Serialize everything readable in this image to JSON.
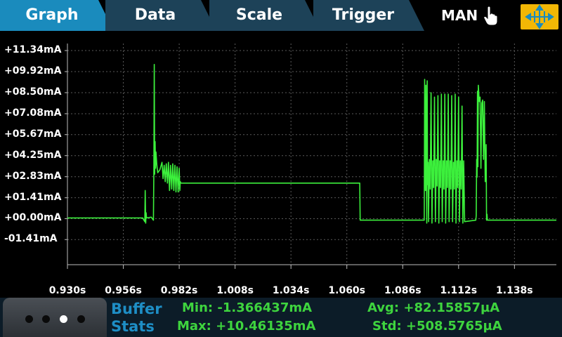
{
  "tabs": [
    {
      "id": "graph",
      "label": "Graph",
      "active": true
    },
    {
      "id": "data",
      "label": "Data",
      "active": false
    },
    {
      "id": "scale",
      "label": "Scale",
      "active": false
    },
    {
      "id": "trigger",
      "label": "Trigger",
      "active": false
    }
  ],
  "mode": {
    "label": "MAN",
    "icon": "hand-pointer-icon"
  },
  "cursor_button": {
    "icon": "cursor-arrows-icon"
  },
  "colors": {
    "tab_active": "#1a8bbd",
    "tab_inactive": "#1d4258",
    "trace": "#3cf03c",
    "grid": "#5a5a5a",
    "stats_title": "#1e8ec5",
    "stats_text": "#3ed43e"
  },
  "chart_data": {
    "type": "line",
    "title": "",
    "xlabel": "",
    "ylabel": "",
    "x_unit": "s",
    "y_unit": "mA",
    "xlim": [
      0.93,
      1.1575
    ],
    "ylim": [
      -2.82,
      11.34
    ],
    "yticks": [
      "+11.34mA",
      "+09.92mA",
      "+08.50mA",
      "+07.08mA",
      "+05.67mA",
      "+04.25mA",
      "+02.83mA",
      "+01.41mA",
      "+00.00mA",
      "-01.41mA"
    ],
    "ytick_values": [
      11.34,
      9.92,
      8.5,
      7.08,
      5.67,
      4.25,
      2.83,
      1.41,
      0.0,
      -1.41
    ],
    "xticks": [
      "0.930s",
      "0.956s",
      "0.982s",
      "1.008s",
      "1.034s",
      "1.060s",
      "1.086s",
      "1.112s",
      "1.138s"
    ],
    "xtick_values": [
      0.93,
      0.956,
      0.982,
      1.008,
      1.034,
      1.06,
      1.086,
      1.112,
      1.138
    ],
    "grid": true,
    "legend": "none",
    "series": [
      {
        "x": [
          0.93,
          0.965,
          0.966,
          0.9662,
          0.9664,
          0.9666,
          0.9668,
          0.969,
          0.97,
          0.9702,
          0.9704,
          0.9706,
          0.9708,
          0.971,
          0.9712,
          0.9716,
          0.972,
          0.973,
          0.974,
          0.9745,
          0.975,
          0.9755,
          0.976,
          0.9765,
          0.977,
          0.9775,
          0.978,
          0.9785,
          0.979,
          0.9795,
          0.98,
          0.9805,
          0.981,
          0.9815,
          0.982,
          0.9823,
          0.9825,
          0.9828,
          0.9832,
          1.0658,
          1.066,
          1.0662,
          1.096,
          1.0962,
          1.0964,
          1.0966,
          1.0968,
          1.097,
          1.0972,
          1.0974,
          1.0976,
          1.0978,
          1.098,
          1.0984,
          1.0988,
          1.0992,
          1.0996,
          1.1,
          1.1004,
          1.1008,
          1.1012,
          1.1016,
          1.102,
          1.1024,
          1.1028,
          1.1032,
          1.1036,
          1.104,
          1.1044,
          1.1048,
          1.1052,
          1.1056,
          1.106,
          1.1064,
          1.1068,
          1.1072,
          1.1076,
          1.108,
          1.1084,
          1.1088,
          1.1092,
          1.1096,
          1.11,
          1.1104,
          1.1108,
          1.1112,
          1.1116,
          1.112,
          1.1124,
          1.1128,
          1.1132,
          1.1136,
          1.114,
          1.1144,
          1.1148,
          1.12,
          1.1202,
          1.1204,
          1.1206,
          1.1208,
          1.121,
          1.1212,
          1.1216,
          1.122,
          1.1224,
          1.1228,
          1.1232,
          1.1236,
          1.124,
          1.1244,
          1.1248,
          1.125,
          1.1252,
          1.1254,
          1.1575
        ],
        "y": [
          0.05,
          0.05,
          -0.2,
          1.9,
          -0.3,
          0.4,
          0.05,
          0.1,
          -0.1,
          3.2,
          10.4,
          3.0,
          5.2,
          3.4,
          4.5,
          3.6,
          3.1,
          3.3,
          3.8,
          2.7,
          3.6,
          2.5,
          3.7,
          2.4,
          3.8,
          1.9,
          3.6,
          2.0,
          3.7,
          1.9,
          3.6,
          1.8,
          3.5,
          1.8,
          3.4,
          1.9,
          2.5,
          2.4,
          2.4,
          2.4,
          2.4,
          -0.1,
          -0.1,
          9.4,
          3.5,
          1.9,
          9.0,
          3.9,
          -0.3,
          9.3,
          2.3,
          3.8,
          -0.2,
          4.0,
          2.0,
          8.5,
          -0.3,
          3.9,
          2.1,
          8.2,
          -0.2,
          4.0,
          2.2,
          8.3,
          -0.3,
          3.9,
          2.1,
          8.4,
          -0.2,
          3.9,
          2.0,
          8.4,
          -0.3,
          3.9,
          2.1,
          8.4,
          -0.2,
          3.9,
          2.0,
          8.3,
          -0.2,
          3.8,
          2.0,
          8.4,
          -0.3,
          3.9,
          2.1,
          8.2,
          -0.2,
          3.9,
          2.0,
          7.6,
          -0.3,
          3.9,
          -0.2,
          -0.1,
          0.2,
          4.0,
          2.8,
          8.6,
          3.5,
          9.0,
          7.9,
          8.2,
          3.4,
          7.8,
          8.0,
          4.0,
          7.9,
          2.5,
          5.0,
          -0.1,
          0.3,
          -0.1,
          -0.1
        ]
      }
    ]
  },
  "buffer_stats": {
    "title_line1": "Buffer",
    "title_line2": "Stats",
    "min": "Min: -1.366437mA",
    "max": "Max: +10.46135mA",
    "avg": "Avg: +82.15857µA",
    "std": "Std: +508.5765µA"
  },
  "swipe_nav": {
    "pages": 4,
    "active_index": 2
  }
}
